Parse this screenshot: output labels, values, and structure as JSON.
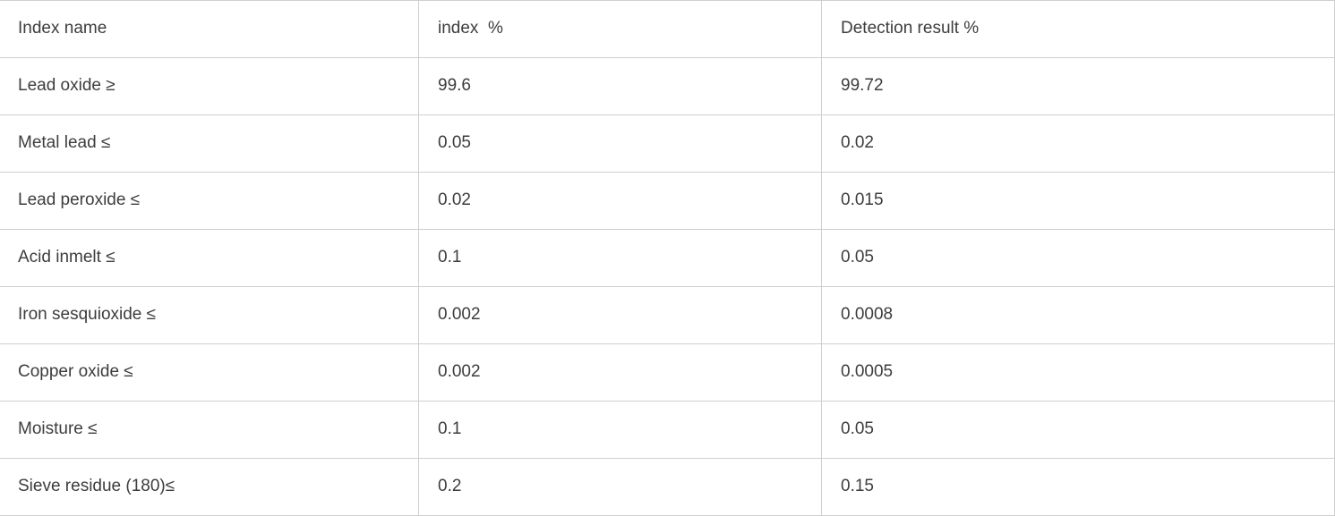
{
  "table": {
    "headers": [
      "Index name",
      "index  %",
      "Detection result %"
    ],
    "rows": [
      {
        "name": "Lead oxide ≥",
        "index": "99.6",
        "result": "99.72"
      },
      {
        "name": "Metal lead ≤",
        "index": "0.05",
        "result": "0.02"
      },
      {
        "name": "Lead peroxide ≤",
        "index": "0.02",
        "result": "0.015"
      },
      {
        "name": "Acid inmelt ≤",
        "index": "0.1",
        "result": "0.05"
      },
      {
        "name": "Iron sesquioxide ≤",
        "index": "0.002",
        "result": "0.0008"
      },
      {
        "name": "Copper oxide ≤",
        "index": "0.002",
        "result": "0.0005"
      },
      {
        "name": "Moisture ≤",
        "index": "0.1",
        "result": "0.05"
      },
      {
        "name": "Sieve residue (180)≤",
        "index": "0.2",
        "result": "0.15"
      }
    ],
    "colors": {
      "border": "#cfcfcf",
      "text": "#3d3d3d",
      "background": "#ffffff"
    }
  },
  "chart_data": {
    "type": "table",
    "title": "",
    "columns": [
      "Index name",
      "index  %",
      "Detection result %"
    ],
    "rows": [
      [
        "Lead oxide ≥",
        "99.6",
        "99.72"
      ],
      [
        "Metal lead ≤",
        "0.05",
        "0.02"
      ],
      [
        "Lead peroxide ≤",
        "0.02",
        "0.015"
      ],
      [
        "Acid inmelt ≤",
        "0.1",
        "0.05"
      ],
      [
        "Iron sesquioxide ≤",
        "0.002",
        "0.0008"
      ],
      [
        "Copper oxide ≤",
        "0.002",
        "0.0005"
      ],
      [
        "Moisture ≤",
        "0.1",
        "0.05"
      ],
      [
        "Sieve residue (180)≤",
        "0.2",
        "0.15"
      ]
    ],
    "layout": {
      "grid": true,
      "header_row": true,
      "columns_count": 3,
      "rows_count": 8
    }
  }
}
